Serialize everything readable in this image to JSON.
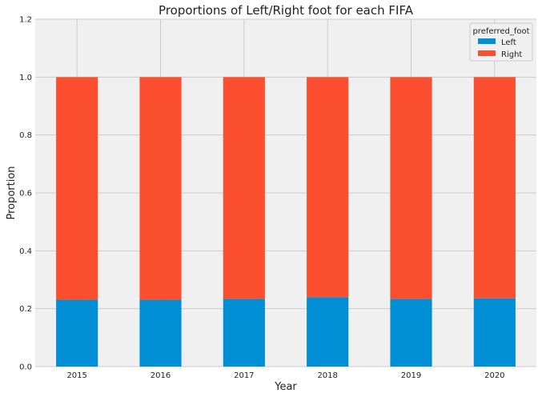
{
  "chart_data": {
    "type": "bar",
    "stacked": true,
    "title": "Proportions of Left/Right foot for each FIFA",
    "xlabel": "Year",
    "ylabel": "Proportion",
    "categories": [
      "2015",
      "2016",
      "2017",
      "2018",
      "2019",
      "2020"
    ],
    "series": [
      {
        "name": "Left",
        "values": [
          0.231,
          0.231,
          0.234,
          0.24,
          0.234,
          0.236
        ]
      },
      {
        "name": "Right",
        "values": [
          0.769,
          0.769,
          0.766,
          0.76,
          0.766,
          0.764
        ]
      }
    ],
    "ylim": [
      0,
      1.2
    ],
    "yticks": [
      "0.0",
      "0.2",
      "0.4",
      "0.6",
      "0.8",
      "1.0",
      "1.2"
    ],
    "grid": true,
    "legend": {
      "title": "preferred_foot",
      "placement": "top-right"
    },
    "colors": {
      "Left": "#008fd5",
      "Right": "#fc4f30",
      "background": "#f0f0f0",
      "grid": "#cbcbcb"
    }
  }
}
